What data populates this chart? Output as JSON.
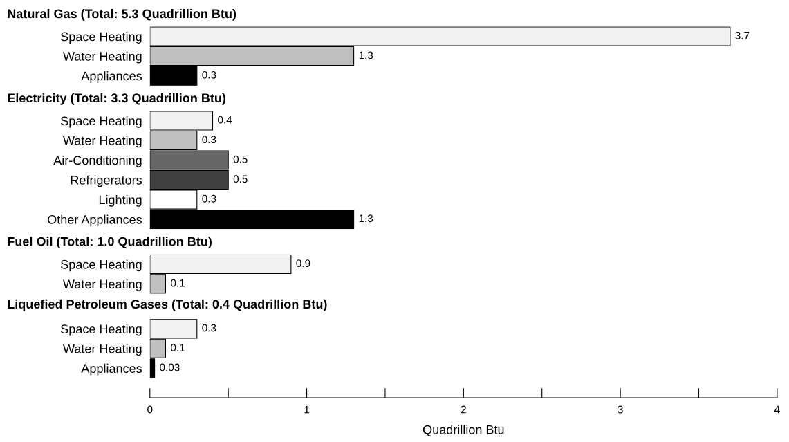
{
  "chart_data": [
    {
      "type": "bar",
      "orientation": "horizontal",
      "title": "Natural Gas (Total: 5.3 Quadrillion Btu)",
      "categories": [
        "Space Heating",
        "Water Heating",
        "Appliances"
      ],
      "values": [
        3.7,
        1.3,
        0.3
      ],
      "colors": [
        "#f2f2f2",
        "#bfbfbf",
        "#000000"
      ],
      "data_labels": true,
      "xlim": [
        0,
        4
      ],
      "tick_labels": "y"
    },
    {
      "type": "bar",
      "orientation": "horizontal",
      "title": "Electricity (Total: 3.3 Quadrillion Btu)",
      "categories": [
        "Space Heating",
        "Water Heating",
        "Air-Conditioning",
        "Refrigerators",
        "Lighting",
        "Other Appliances"
      ],
      "values": [
        0.4,
        0.3,
        0.5,
        0.5,
        0.3,
        1.3
      ],
      "colors": [
        "#f2f2f2",
        "#bfbfbf",
        "#666666",
        "#404040",
        "#ffffff",
        "#000000"
      ],
      "data_labels": true,
      "xlim": [
        0,
        4
      ],
      "tick_labels": "y"
    },
    {
      "type": "bar",
      "orientation": "horizontal",
      "title": "Fuel Oil (Total: 1.0 Quadrillion Btu)",
      "categories": [
        "Space Heating",
        "Water Heating"
      ],
      "values": [
        0.9,
        0.1
      ],
      "colors": [
        "#f2f2f2",
        "#bfbfbf"
      ],
      "data_labels": true,
      "xlim": [
        0,
        4
      ],
      "tick_labels": "y"
    },
    {
      "type": "bar",
      "orientation": "horizontal",
      "title": "Liquefied Petroleum Gases (Total: 0.4 Quadrillion Btu)",
      "categories": [
        "Space Heating",
        "Water Heating",
        "Appliances"
      ],
      "values": [
        0.3,
        0.1,
        0.03
      ],
      "colors": [
        "#f2f2f2",
        "#bfbfbf",
        "#000000"
      ],
      "data_labels": true,
      "xlim": [
        0,
        4
      ],
      "xticks": [
        0,
        {
          "value": 0.5,
          "label": null
        },
        1,
        {
          "value": 1.5,
          "label": null
        },
        2,
        {
          "value": 2.5,
          "label": null
        },
        3,
        {
          "value": 3.5,
          "label": null
        },
        4
      ],
      "xlabel": "Quadrillion Btu"
    }
  ]
}
